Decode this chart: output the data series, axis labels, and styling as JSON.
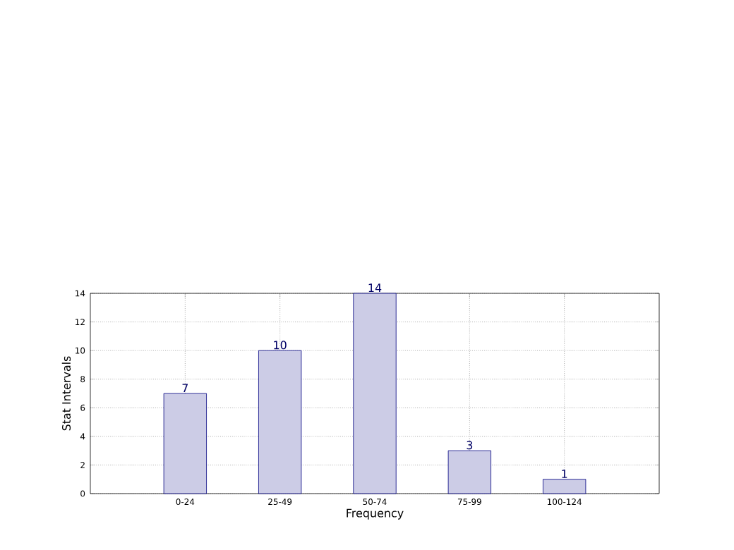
{
  "chart_data": {
    "type": "bar",
    "xlabel": "Frequency",
    "ylabel": "Stat Intervals",
    "categories": [
      "0-24",
      "25-49",
      "50-74",
      "75-99",
      "100-124"
    ],
    "values": [
      7,
      10,
      14,
      3,
      1
    ],
    "color": "#cccce6",
    "ylim": [
      0,
      14
    ],
    "yticks": [
      0,
      2,
      4,
      6,
      8,
      10,
      12,
      14
    ],
    "grid": true,
    "data_labels": true
  }
}
